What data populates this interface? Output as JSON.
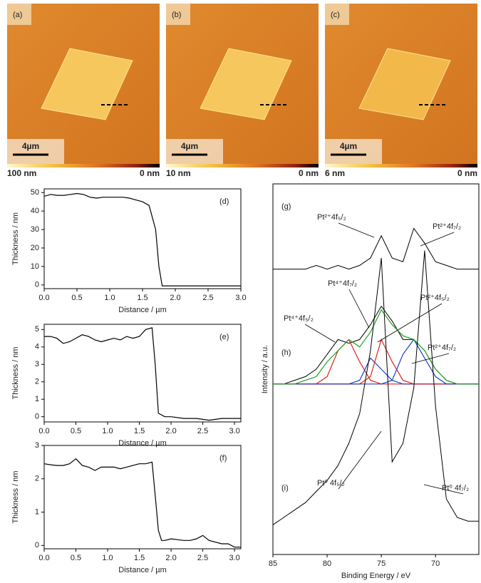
{
  "images": [
    {
      "label": "(a)",
      "scale_bar": "4µm",
      "cbar_max": "100 nm",
      "cbar_min": "0 nm"
    },
    {
      "label": "(b)",
      "scale_bar": "4µm",
      "cbar_max": "10 nm",
      "cbar_min": "0 nm"
    },
    {
      "label": "(c)",
      "scale_bar": "4µm",
      "cbar_max": "6 nm",
      "cbar_min": "0 nm"
    }
  ],
  "chart_data": [
    {
      "type": "line",
      "panel_label": "(d)",
      "xlabel": "Distance / µm",
      "ylabel": "Thickness / nm",
      "color": "#000000",
      "x": [
        0,
        0.1,
        0.2,
        0.3,
        0.4,
        0.5,
        0.6,
        0.7,
        0.8,
        0.9,
        1.0,
        1.1,
        1.2,
        1.3,
        1.4,
        1.5,
        1.6,
        1.7,
        1.75,
        1.8,
        1.9,
        2.0,
        2.5,
        3.0
      ],
      "values": [
        48,
        49,
        48.5,
        48.5,
        49,
        49.5,
        49,
        47.5,
        47,
        47.5,
        47.5,
        47.5,
        47.5,
        47,
        46,
        45,
        43,
        30,
        10,
        -0.5,
        -0.5,
        -0.5,
        -0.5,
        -0.5
      ],
      "xlim": [
        0,
        3
      ],
      "ylim": [
        -2,
        52
      ],
      "xticks": [
        {
          "value": 0,
          "label": "0.0"
        },
        0.5,
        {
          "value": 1,
          "label": "1.0"
        },
        1.5,
        {
          "value": 2,
          "label": "2.0"
        },
        2.5,
        {
          "value": 3,
          "label": "3.0"
        }
      ],
      "yticks": [
        0,
        10,
        20,
        30,
        40,
        50
      ]
    },
    {
      "type": "line",
      "panel_label": "(e)",
      "xlabel": "Distance / µm",
      "ylabel": "Thickness / nm",
      "color": "#000000",
      "x": [
        0,
        0.1,
        0.2,
        0.3,
        0.4,
        0.5,
        0.6,
        0.7,
        0.8,
        0.9,
        1.0,
        1.1,
        1.2,
        1.3,
        1.4,
        1.5,
        1.6,
        1.7,
        1.75,
        1.8,
        1.9,
        2.0,
        2.2,
        2.4,
        2.6,
        2.8,
        3.0,
        3.1
      ],
      "values": [
        4.6,
        4.6,
        4.5,
        4.2,
        4.3,
        4.5,
        4.7,
        4.6,
        4.4,
        4.3,
        4.4,
        4.5,
        4.4,
        4.6,
        4.5,
        4.6,
        5.0,
        5.1,
        3.0,
        0.2,
        0.0,
        0.0,
        -0.1,
        -0.1,
        -0.2,
        -0.1,
        -0.1,
        -0.1
      ],
      "xlim": [
        0,
        3.1
      ],
      "ylim": [
        -0.3,
        5.3
      ],
      "xticks": [
        {
          "value": 0,
          "label": "0.0"
        },
        0.5,
        {
          "value": 1,
          "label": "1.0"
        },
        1.5,
        {
          "value": 2,
          "label": "2.0"
        },
        2.5,
        {
          "value": 3,
          "label": "3.0"
        }
      ],
      "yticks": [
        0,
        1,
        2,
        3,
        4,
        5
      ]
    },
    {
      "type": "line",
      "panel_label": "(f)",
      "xlabel": "Distance / µm",
      "ylabel": "Thickness / nm",
      "color": "#000000",
      "x": [
        0,
        0.1,
        0.2,
        0.3,
        0.4,
        0.5,
        0.6,
        0.7,
        0.8,
        0.9,
        1.0,
        1.1,
        1.2,
        1.3,
        1.4,
        1.5,
        1.6,
        1.7,
        1.75,
        1.8,
        1.85,
        1.9,
        2.0,
        2.2,
        2.3,
        2.4,
        2.5,
        2.6,
        2.8,
        2.9,
        3.0,
        3.1
      ],
      "values": [
        2.45,
        2.42,
        2.4,
        2.4,
        2.45,
        2.6,
        2.4,
        2.35,
        2.25,
        2.35,
        2.35,
        2.35,
        2.3,
        2.35,
        2.4,
        2.45,
        2.45,
        2.5,
        1.5,
        0.45,
        0.15,
        0.15,
        0.2,
        0.15,
        0.15,
        0.2,
        0.3,
        0.15,
        0.05,
        0.05,
        -0.05,
        -0.05
      ],
      "xlim": [
        0,
        3.1
      ],
      "ylim": [
        -0.1,
        3
      ],
      "xticks": [
        {
          "value": 0,
          "label": "0.0"
        },
        0.5,
        {
          "value": 1,
          "label": "1.0"
        },
        1.5,
        {
          "value": 2,
          "label": "2.0"
        },
        2.5,
        {
          "value": 3,
          "label": "3.0"
        }
      ],
      "yticks": [
        0,
        1,
        2,
        3
      ]
    },
    {
      "type": "spectra",
      "xlabel": "Binding Energy / eV",
      "ylabel": "Intensity / a.u.",
      "x": [
        85,
        84,
        83,
        82,
        81,
        80,
        79,
        78,
        77,
        76,
        75,
        74,
        73,
        72,
        71,
        70,
        69,
        68,
        67,
        66
      ],
      "xlim": [
        85,
        66
      ],
      "ylim": [
        0,
        100
      ],
      "xticks": [
        85,
        80,
        75,
        70
      ],
      "series": [
        {
          "name": "(g)",
          "color": "#000000",
          "values": [
            77,
            77,
            77,
            77,
            78,
            77,
            78,
            77,
            78,
            80,
            86,
            80,
            79,
            88,
            84,
            79,
            78,
            77,
            77,
            77
          ]
        },
        {
          "name": "(h)",
          "color": "#000000",
          "values": [
            46,
            46,
            47,
            48,
            50,
            54,
            58,
            57,
            58,
            62,
            67,
            63,
            58,
            58,
            55,
            50,
            47,
            46,
            46,
            46
          ]
        },
        {
          "color": "#e02020",
          "values": [
            46,
            46,
            46,
            46,
            46,
            48,
            55,
            58,
            52,
            47,
            46,
            46,
            46,
            46,
            46,
            46,
            46,
            46,
            46,
            46
          ]
        },
        {
          "color": "#2040c0",
          "values": [
            46,
            46,
            46,
            46,
            46,
            46,
            46,
            46,
            47,
            53,
            50,
            47,
            46,
            46,
            46,
            46,
            46,
            46,
            46,
            46
          ]
        },
        {
          "color": "#e02020",
          "values": [
            46,
            46,
            46,
            46,
            46,
            46,
            46,
            46,
            46,
            48,
            58,
            52,
            47,
            46,
            46,
            46,
            46,
            46,
            46,
            46
          ]
        },
        {
          "color": "#2040c0",
          "values": [
            46,
            46,
            46,
            46,
            46,
            46,
            46,
            46,
            46,
            46,
            46,
            47,
            54,
            58,
            53,
            48,
            46,
            46,
            46,
            46
          ]
        },
        {
          "color": "#20a020",
          "values": [
            46,
            46,
            46,
            47,
            48,
            52,
            55,
            58,
            56,
            60,
            66,
            62,
            59,
            58,
            55,
            50,
            47,
            46,
            46,
            46
          ]
        },
        {
          "name": "(i)",
          "color": "#000000",
          "values": [
            8,
            10,
            12,
            14,
            17,
            20,
            24,
            30,
            38,
            55,
            80,
            25,
            30,
            45,
            82,
            40,
            15,
            10,
            9,
            9
          ]
        }
      ],
      "annotations": [
        "Pt²⁺4f₅/₂",
        "Pt²⁺4f₇/₂",
        "Pt⁴⁺4f₅/₂",
        "Pt⁴⁺4f₇/₂",
        "Pt²⁺4f₅/₂",
        "Pt²⁺4f₇/₂",
        "Pt⁰ 4f₅/₂",
        "Pt⁰ 4f₇/₂"
      ]
    }
  ]
}
